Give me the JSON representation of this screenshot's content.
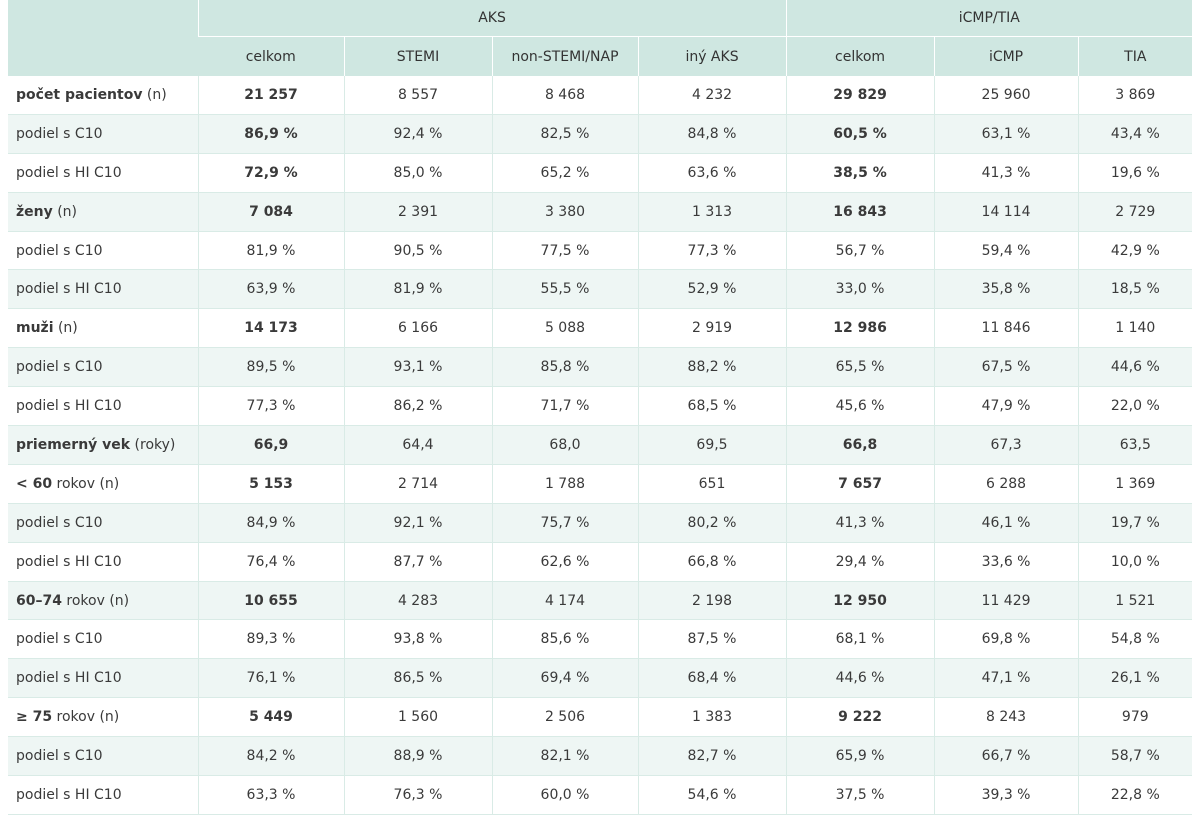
{
  "header": {
    "group_aks": "AKS",
    "group_icmp": "iCMP/TIA",
    "columns": [
      "celkom",
      "STEMI",
      "non-STEMI/NAP",
      "iný AKS",
      "celkom",
      "iCMP",
      "TIA"
    ]
  },
  "rows": [
    {
      "label_bold": "počet pacientov",
      "label_rest": " (n)",
      "values": [
        "21 257",
        "8 557",
        "8 468",
        "4 232",
        "29 829",
        "25 960",
        "3 869"
      ]
    },
    {
      "label_bold": "",
      "label_rest": "podiel s C10",
      "values": [
        "86,9 %",
        "92,4 %",
        "82,5 %",
        "84,8 %",
        "60,5 %",
        "63,1 %",
        "43,4 %"
      ]
    },
    {
      "label_bold": "",
      "label_rest": "podiel s HI C10",
      "values": [
        "72,9 %",
        "85,0 %",
        "65,2 %",
        "63,6 %",
        "38,5 %",
        "41,3 %",
        "19,6 %"
      ]
    },
    {
      "label_bold": "ženy",
      "label_rest": " (n)",
      "values": [
        "7 084",
        "2 391",
        "3 380",
        "1 313",
        "16 843",
        "14 114",
        "2 729"
      ]
    },
    {
      "label_bold": "",
      "label_rest": "podiel s C10",
      "values": [
        "81,9 %",
        "90,5 %",
        "77,5 %",
        "77,3 %",
        "56,7 %",
        "59,4 %",
        "42,9 %"
      ]
    },
    {
      "label_bold": "",
      "label_rest": "podiel s HI C10",
      "values": [
        "63,9 %",
        "81,9 %",
        "55,5 %",
        "52,9 %",
        "33,0 %",
        "35,8 %",
        "18,5 %"
      ]
    },
    {
      "label_bold": "muži",
      "label_rest": " (n)",
      "values": [
        "14 173",
        "6 166",
        "5 088",
        "2 919",
        "12 986",
        "11 846",
        "1 140"
      ]
    },
    {
      "label_bold": "",
      "label_rest": "podiel s C10",
      "values": [
        "89,5 %",
        "93,1 %",
        "85,8 %",
        "88,2 %",
        "65,5 %",
        "67,5 %",
        "44,6 %"
      ]
    },
    {
      "label_bold": "",
      "label_rest": "podiel s HI C10",
      "values": [
        "77,3 %",
        "86,2 %",
        "71,7 %",
        "68,5 %",
        "45,6 %",
        "47,9 %",
        "22,0 %"
      ]
    },
    {
      "label_bold": "priemerný vek",
      "label_rest": " (roky)",
      "values": [
        "66,9",
        "64,4",
        "68,0",
        "69,5",
        "66,8",
        "67,3",
        "63,5"
      ]
    },
    {
      "label_bold": "< 60",
      "label_rest": " rokov (n)",
      "values": [
        "5 153",
        "2 714",
        "1 788",
        "651",
        "7 657",
        "6 288",
        "1 369"
      ]
    },
    {
      "label_bold": "",
      "label_rest": "podiel s C10",
      "values": [
        "84,9 %",
        "92,1 %",
        "75,7 %",
        "80,2 %",
        "41,3 %",
        "46,1 %",
        "19,7 %"
      ]
    },
    {
      "label_bold": "",
      "label_rest": "podiel s HI C10",
      "values": [
        "76,4 %",
        "87,7 %",
        "62,6 %",
        "66,8 %",
        "29,4 %",
        "33,6 %",
        "10,0 %"
      ]
    },
    {
      "label_bold": "60–74",
      "label_rest": " rokov (n)",
      "values": [
        "10 655",
        "4 283",
        "4 174",
        "2 198",
        "12 950",
        "11 429",
        "1 521"
      ]
    },
    {
      "label_bold": "",
      "label_rest": "podiel s C10",
      "values": [
        "89,3 %",
        "93,8 %",
        "85,6 %",
        "87,5 %",
        "68,1 %",
        "69,8 %",
        "54,8 %"
      ]
    },
    {
      "label_bold": "",
      "label_rest": "podiel s HI C10",
      "values": [
        "76,1 %",
        "86,5 %",
        "69,4 %",
        "68,4 %",
        "44,6 %",
        "47,1 %",
        "26,1 %"
      ]
    },
    {
      "label_bold": "≥ 75",
      "label_rest": " rokov (n)",
      "values": [
        "5 449",
        "1 560",
        "2 506",
        "1 383",
        "9 222",
        "8 243",
        "979"
      ]
    },
    {
      "label_bold": "",
      "label_rest": "podiel s C10",
      "values": [
        "84,2 %",
        "88,9 %",
        "82,1 %",
        "82,7 %",
        "65,9 %",
        "66,7 %",
        "58,7 %"
      ]
    },
    {
      "label_bold": "",
      "label_rest": "podiel s HI C10",
      "values": [
        "63,3 %",
        "76,3 %",
        "60,0 %",
        "54,6 %",
        "37,5 %",
        "39,3 %",
        "22,8 %"
      ]
    }
  ]
}
